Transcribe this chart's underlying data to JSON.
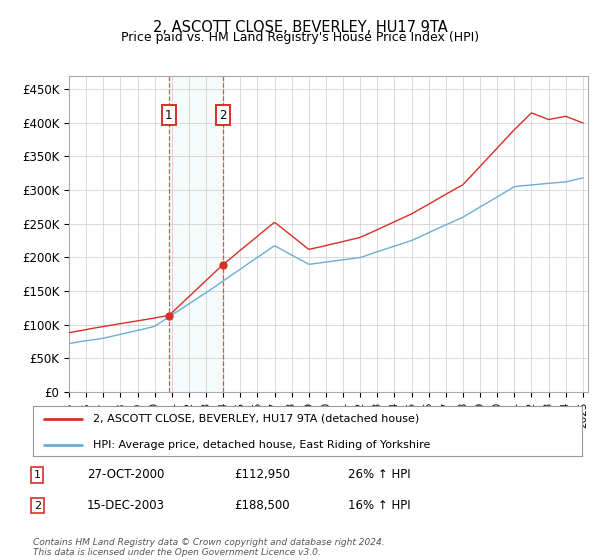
{
  "title": "2, ASCOTT CLOSE, BEVERLEY, HU17 9TA",
  "subtitle": "Price paid vs. HM Land Registry's House Price Index (HPI)",
  "ylim": [
    0,
    470000
  ],
  "yticks": [
    0,
    50000,
    100000,
    150000,
    200000,
    250000,
    300000,
    350000,
    400000,
    450000
  ],
  "ytick_labels": [
    "£0",
    "£50K",
    "£100K",
    "£150K",
    "£200K",
    "£250K",
    "£300K",
    "£350K",
    "£400K",
    "£450K"
  ],
  "hpi_color": "#6baed6",
  "price_color": "#d73027",
  "transaction1": {
    "date": "27-OCT-2000",
    "price": 112950,
    "label": "1",
    "hpi_change": "26% ↑ HPI"
  },
  "transaction2": {
    "date": "15-DEC-2003",
    "price": 188500,
    "label": "2",
    "hpi_change": "16% ↑ HPI"
  },
  "legend_line1": "2, ASCOTT CLOSE, BEVERLEY, HU17 9TA (detached house)",
  "legend_line2": "HPI: Average price, detached house, East Riding of Yorkshire",
  "footer": "Contains HM Land Registry data © Crown copyright and database right 2024.\nThis data is licensed under the Open Government Licence v3.0.",
  "background_color": "#ffffff",
  "grid_color": "#cccccc",
  "key_years_hpi": [
    1995,
    1997,
    2000,
    2003,
    2007,
    2009,
    2012,
    2015,
    2018,
    2021,
    2024,
    2025
  ],
  "key_vals_hpi": [
    72000,
    80000,
    98000,
    148000,
    218000,
    190000,
    200000,
    225000,
    260000,
    305000,
    312000,
    318000
  ],
  "key_years_prop": [
    1995,
    1997,
    2000.83,
    2003.96,
    2007,
    2009,
    2012,
    2015,
    2018,
    2021,
    2022,
    2023,
    2024,
    2025
  ],
  "key_vals_prop": [
    88000,
    97000,
    112950,
    188500,
    252000,
    212000,
    230000,
    265000,
    308000,
    390000,
    415000,
    405000,
    410000,
    400000
  ]
}
